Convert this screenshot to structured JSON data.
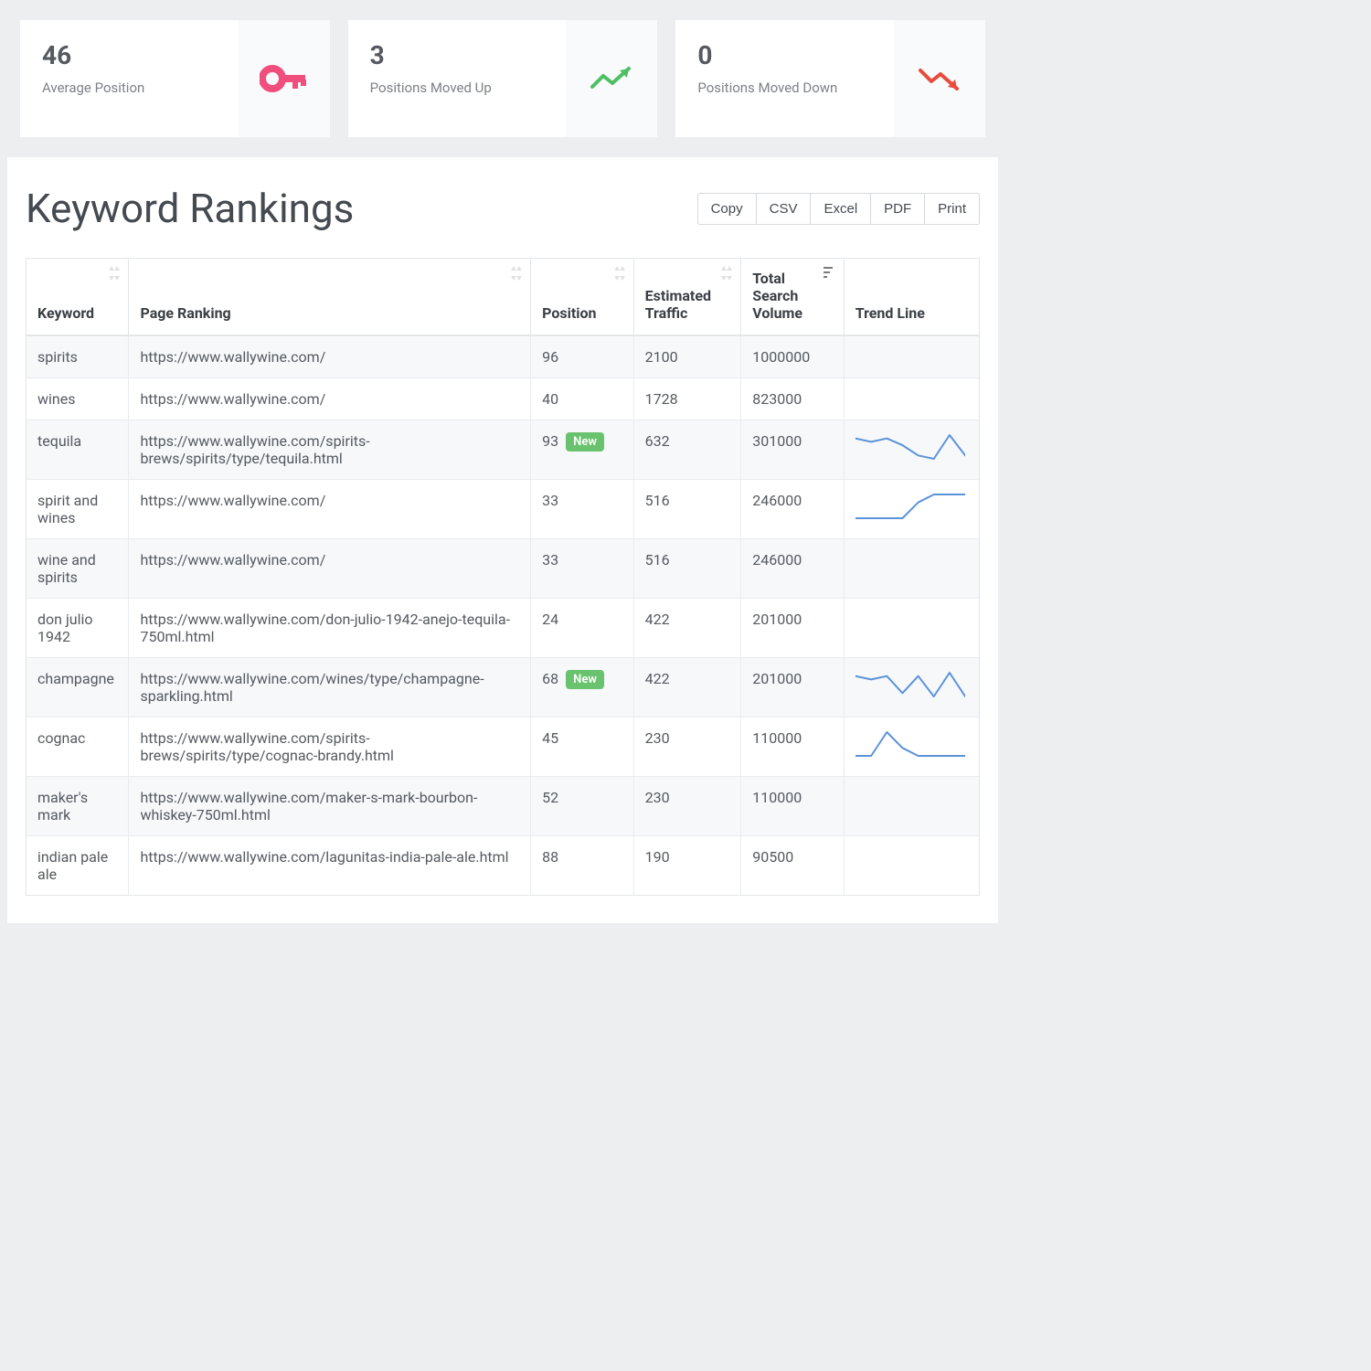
{
  "colors": {
    "page_bg": "#eceeef",
    "card_bg": "#ffffff",
    "card_icon_bg": "#f8fafc",
    "title_color": "#444a50",
    "text_color": "#555a60",
    "muted": "#7d8186",
    "border": "#e3e6e8",
    "row_alt": "#f6f8fa",
    "badge_bg": "#69c36e",
    "spark_stroke": "#5c93d8",
    "icon_key": "#f04e7c",
    "icon_up": "#4fbf63",
    "icon_down": "#e94b3c"
  },
  "cards": [
    {
      "value": "46",
      "label": "Average Position",
      "icon": "key",
      "icon_color": "#f04e7c"
    },
    {
      "value": "3",
      "label": "Positions Moved Up",
      "icon": "trend-up",
      "icon_color": "#4fbf63"
    },
    {
      "value": "0",
      "label": "Positions Moved Down",
      "icon": "trend-down",
      "icon_color": "#e94b3c"
    }
  ],
  "panel": {
    "title": "Keyword Rankings",
    "buttons": [
      "Copy",
      "CSV",
      "Excel",
      "PDF",
      "Print"
    ]
  },
  "table": {
    "columns": [
      {
        "label": "Keyword",
        "sortable": true,
        "sorted": null,
        "cls": "col-keyword"
      },
      {
        "label": "Page Ranking",
        "sortable": true,
        "sorted": null,
        "cls": "col-page"
      },
      {
        "label": "Position",
        "sortable": true,
        "sorted": null,
        "cls": "col-pos"
      },
      {
        "label": "Estimated Traffic",
        "sortable": true,
        "sorted": null,
        "cls": "col-traffic"
      },
      {
        "label": "Total Search Volume",
        "sortable": true,
        "sorted": "desc",
        "cls": "col-volume"
      },
      {
        "label": "Trend Line",
        "sortable": false,
        "sorted": null,
        "cls": "col-trend"
      }
    ],
    "rows": [
      {
        "keyword": "spirits",
        "page": "https://www.wallywine.com/",
        "position": "96",
        "new": false,
        "traffic": "2100",
        "volume": "1000000",
        "spark": null
      },
      {
        "keyword": "wines",
        "page": "https://www.wallywine.com/",
        "position": "40",
        "new": false,
        "traffic": "1728",
        "volume": "823000",
        "spark": null
      },
      {
        "keyword": "tequila",
        "page": "https://www.wallywine.com/spirits-brews/spirits/type/tequila.html",
        "position": "93",
        "new": true,
        "traffic": "632",
        "volume": "301000",
        "spark": [
          10,
          12,
          10,
          14,
          20,
          22,
          8,
          20
        ]
      },
      {
        "keyword": "spirit and wines",
        "page": "https://www.wallywine.com/",
        "position": "33",
        "new": false,
        "traffic": "516",
        "volume": "246000",
        "spark": [
          20,
          20,
          20,
          20,
          12,
          8,
          8,
          8
        ]
      },
      {
        "keyword": "wine and spirits",
        "page": "https://www.wallywine.com/",
        "position": "33",
        "new": false,
        "traffic": "516",
        "volume": "246000",
        "spark": null
      },
      {
        "keyword": "don julio 1942",
        "page": "https://www.wallywine.com/don-julio-1942-anejo-tequila-750ml.html",
        "position": "24",
        "new": false,
        "traffic": "422",
        "volume": "201000",
        "spark": null
      },
      {
        "keyword": "champagne",
        "page": "https://www.wallywine.com/wines/type/champagne-sparkling.html",
        "position": "68",
        "new": true,
        "traffic": "422",
        "volume": "201000",
        "spark": [
          10,
          12,
          10,
          20,
          10,
          22,
          8,
          22
        ]
      },
      {
        "keyword": "cognac",
        "page": "https://www.wallywine.com/spirits-brews/spirits/type/cognac-brandy.html",
        "position": "45",
        "new": false,
        "traffic": "230",
        "volume": "110000",
        "spark": [
          18,
          18,
          6,
          14,
          18,
          18,
          18,
          18
        ]
      },
      {
        "keyword": "maker's mark",
        "page": "https://www.wallywine.com/maker-s-mark-bourbon-whiskey-750ml.html",
        "position": "52",
        "new": false,
        "traffic": "230",
        "volume": "110000",
        "spark": null
      },
      {
        "keyword": "indian pale ale",
        "page": "https://www.wallywine.com/lagunitas-india-pale-ale.html",
        "position": "88",
        "new": false,
        "traffic": "190",
        "volume": "90500",
        "spark": null
      }
    ],
    "spark_stroke": "#5c93d8",
    "spark_width": 2,
    "badge_label": "New"
  }
}
